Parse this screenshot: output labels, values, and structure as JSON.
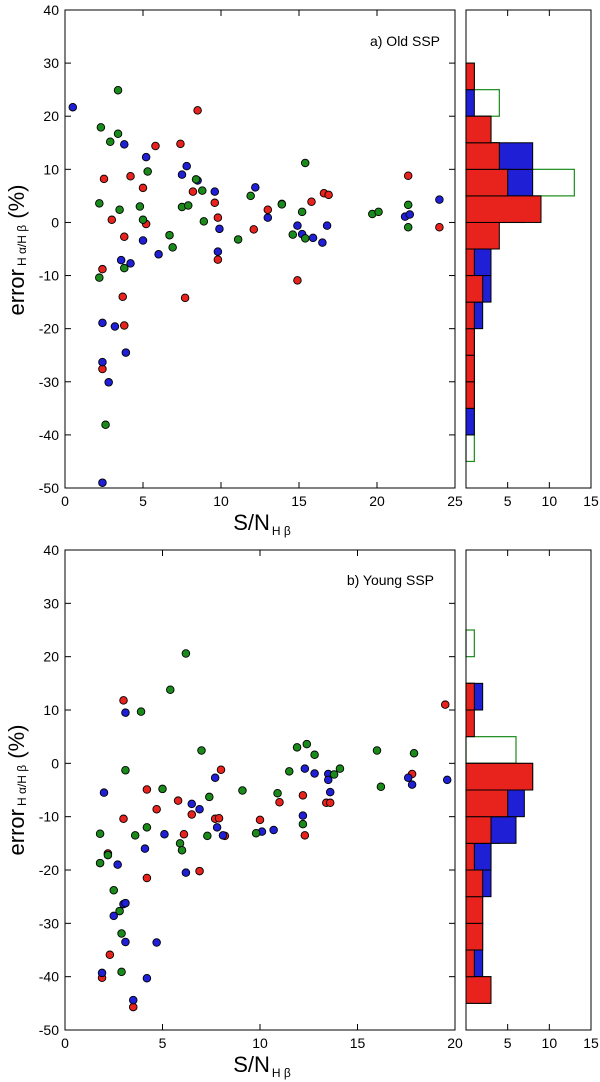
{
  "colors": {
    "red": "#e8221c",
    "blue": "#1f1fd6",
    "green": "#1a8a1a",
    "edge": "#000000"
  },
  "chart_data": [
    {
      "type": "scatter",
      "annotation": "a) Old SSP",
      "xlabel_main": "S/N",
      "xlabel_sub": "H β",
      "ylabel_main": "error",
      "ylabel_sub": "H α/H β",
      "ylabel_tail": " (%)",
      "xlim": [
        0,
        25
      ],
      "ylim": [
        -50,
        40
      ],
      "xticks": [
        "0",
        "5",
        "10",
        "15",
        "20",
        "25"
      ],
      "yticks": [
        "-50",
        "-40",
        "-30",
        "-20",
        "-10",
        "0",
        "10",
        "20",
        "30",
        "40"
      ],
      "series": [
        {
          "name": "red",
          "points": [
            [
              2.5,
              8.2
            ],
            [
              3,
              0.5
            ],
            [
              2.4,
              -8.8
            ],
            [
              2.4,
              -27.6
            ],
            [
              3.7,
              -14
            ],
            [
              3.8,
              -19.4
            ],
            [
              3.8,
              -2.7
            ],
            [
              4.2,
              8.7
            ],
            [
              5,
              6.5
            ],
            [
              5.2,
              -0.3
            ],
            [
              5.8,
              14.4
            ],
            [
              7.4,
              14.8
            ],
            [
              7.7,
              -14.2
            ],
            [
              8.2,
              5.8
            ],
            [
              8.5,
              21.1
            ],
            [
              9.6,
              3.7
            ],
            [
              9.8,
              0.9
            ],
            [
              9.8,
              -7
            ],
            [
              12.1,
              -1.3
            ],
            [
              13,
              2.4
            ],
            [
              14.9,
              -10.9
            ],
            [
              15.8,
              3.9
            ],
            [
              16.6,
              5.5
            ],
            [
              16.9,
              5.2
            ],
            [
              22,
              8.8
            ],
            [
              24,
              -0.9
            ]
          ]
        },
        {
          "name": "blue",
          "points": [
            [
              0.5,
              21.7
            ],
            [
              3.8,
              14.7
            ],
            [
              5.2,
              12.3
            ],
            [
              7.5,
              9
            ],
            [
              7.8,
              10.6
            ],
            [
              8.5,
              7.9
            ],
            [
              9.6,
              5.8
            ],
            [
              9.9,
              -1.2
            ],
            [
              9.8,
              -5.5
            ],
            [
              12.2,
              6.6
            ],
            [
              13,
              0.9
            ],
            [
              13.9,
              3.5
            ],
            [
              14.9,
              -0.6
            ],
            [
              15.2,
              -2.2
            ],
            [
              15.9,
              -2.9
            ],
            [
              16.5,
              -3.8
            ],
            [
              16.8,
              -0.6
            ],
            [
              21.8,
              1.1
            ],
            [
              22.1,
              1.5
            ],
            [
              24,
              4.3
            ],
            [
              2.4,
              -18.9
            ],
            [
              3.2,
              -19.6
            ],
            [
              2.4,
              -26.3
            ],
            [
              2.8,
              -30.1
            ],
            [
              3.9,
              -24.5
            ],
            [
              3.6,
              -7.1
            ],
            [
              4.2,
              -7.7
            ],
            [
              5,
              -3.4
            ],
            [
              6,
              -6
            ],
            [
              2.4,
              -49
            ]
          ]
        },
        {
          "name": "green",
          "points": [
            [
              2.3,
              17.9
            ],
            [
              2.9,
              15.2
            ],
            [
              3.4,
              16.7
            ],
            [
              3.4,
              24.9
            ],
            [
              5.3,
              9.6
            ],
            [
              4.8,
              3
            ],
            [
              5,
              0.5
            ],
            [
              2.2,
              3.6
            ],
            [
              2.2,
              -10.4
            ],
            [
              3.5,
              2.4
            ],
            [
              3.8,
              -8.6
            ],
            [
              6.7,
              -2.4
            ],
            [
              6.9,
              -4.7
            ],
            [
              7.5,
              2.9
            ],
            [
              7.9,
              3.2
            ],
            [
              8.4,
              8.1
            ],
            [
              8.8,
              6
            ],
            [
              8.9,
              0.2
            ],
            [
              11.1,
              -3.2
            ],
            [
              11.9,
              5
            ],
            [
              13.9,
              3.4
            ],
            [
              14.6,
              -2.3
            ],
            [
              15.2,
              2
            ],
            [
              15.4,
              11.2
            ],
            [
              15.4,
              -3
            ],
            [
              19.7,
              1.6
            ],
            [
              20.1,
              2
            ],
            [
              22,
              3.3
            ],
            [
              22,
              -0.9
            ],
            [
              2.6,
              -38.1
            ]
          ]
        }
      ]
    },
    {
      "type": "bar",
      "orientation": "horizontal",
      "xlim": [
        0,
        15
      ],
      "ylim": [
        -50,
        40
      ],
      "xticks": [
        "5",
        "10",
        "15"
      ],
      "bin_edges": [
        -50,
        -45,
        -40,
        -35,
        -30,
        -25,
        -20,
        -15,
        -10,
        -5,
        0,
        5,
        10,
        15,
        20,
        25,
        30,
        35,
        40
      ],
      "series": [
        {
          "name": "green",
          "style": "outline",
          "counts": [
            0,
            1,
            1,
            1,
            1,
            1,
            1,
            1,
            1,
            3,
            7,
            13,
            4,
            3,
            4,
            1,
            0,
            0
          ]
        },
        {
          "name": "blue",
          "style": "filled",
          "counts": [
            0,
            0,
            1,
            1,
            1,
            1,
            2,
            3,
            3,
            2,
            5,
            8,
            8,
            3,
            1,
            0,
            0,
            0
          ]
        },
        {
          "name": "red",
          "style": "filled",
          "counts": [
            0,
            0,
            0,
            1,
            1,
            1,
            1,
            2,
            1,
            4,
            9,
            5,
            4,
            3,
            0,
            1,
            0,
            0
          ]
        }
      ]
    },
    {
      "type": "scatter",
      "annotation": "b) Young SSP",
      "xlabel_main": "S/N",
      "xlabel_sub": "H β",
      "ylabel_main": "error",
      "ylabel_sub": "H α/H β",
      "ylabel_tail": " (%)",
      "xlim": [
        0,
        20
      ],
      "ylim": [
        -50,
        40
      ],
      "xticks": [
        "0",
        "5",
        "10",
        "15",
        "20"
      ],
      "yticks": [
        "-50",
        "-40",
        "-30",
        "-20",
        "-10",
        "0",
        "10",
        "20",
        "30",
        "40"
      ],
      "series": [
        {
          "name": "red",
          "points": [
            [
              3,
              11.8
            ],
            [
              3,
              -10.4
            ],
            [
              2.2,
              -16.9
            ],
            [
              2.3,
              -35.9
            ],
            [
              1.9,
              -40.2
            ],
            [
              3.5,
              -45.7
            ],
            [
              4.2,
              -4.9
            ],
            [
              4.2,
              -21.5
            ],
            [
              4.7,
              -8.6
            ],
            [
              5.8,
              -7
            ],
            [
              6.1,
              -13.3
            ],
            [
              6.5,
              -9.6
            ],
            [
              6.9,
              -20.2
            ],
            [
              7.7,
              -10.4
            ],
            [
              7.9,
              -10.3
            ],
            [
              8.2,
              -13.6
            ],
            [
              8,
              -1.2
            ],
            [
              10,
              -10.6
            ],
            [
              11,
              -7.3
            ],
            [
              12.3,
              -13.5
            ],
            [
              12.2,
              -6
            ],
            [
              13.4,
              -7.4
            ],
            [
              13.6,
              -7.4
            ],
            [
              17.8,
              -2
            ],
            [
              19.5,
              11
            ]
          ]
        },
        {
          "name": "blue",
          "points": [
            [
              3.1,
              9.5
            ],
            [
              2,
              -5.5
            ],
            [
              2.5,
              -28.6
            ],
            [
              2.7,
              -19
            ],
            [
              3,
              -26.4
            ],
            [
              3.1,
              -33.5
            ],
            [
              1.9,
              -39.3
            ],
            [
              3.5,
              -44.4
            ],
            [
              4.1,
              -16
            ],
            [
              4.2,
              -40.3
            ],
            [
              4.7,
              -33.6
            ],
            [
              5.1,
              -13.3
            ],
            [
              6.2,
              -20.5
            ],
            [
              6.5,
              -7.6
            ],
            [
              6.9,
              -8.6
            ],
            [
              7.8,
              -12
            ],
            [
              7.7,
              -2.7
            ],
            [
              8.1,
              -13.5
            ],
            [
              10.1,
              -12.8
            ],
            [
              10.7,
              -12.5
            ],
            [
              12.2,
              -9.8
            ],
            [
              12.3,
              -1
            ],
            [
              12.8,
              -1.9
            ],
            [
              13.5,
              -2
            ],
            [
              13.5,
              -3.1
            ],
            [
              13.6,
              -5.4
            ],
            [
              17.6,
              -2.7
            ],
            [
              17.8,
              -4
            ],
            [
              19.6,
              -3.1
            ],
            [
              3.1,
              -26.2
            ]
          ]
        },
        {
          "name": "green",
          "points": [
            [
              6.2,
              20.6
            ],
            [
              5.4,
              13.8
            ],
            [
              3.1,
              -1.3
            ],
            [
              3.9,
              9.7
            ],
            [
              1.8,
              -13.2
            ],
            [
              1.8,
              -18.7
            ],
            [
              2.2,
              -17.2
            ],
            [
              2.5,
              -23.8
            ],
            [
              2.8,
              -27.7
            ],
            [
              2.9,
              -31.9
            ],
            [
              2.9,
              -39.1
            ],
            [
              3.6,
              -13.5
            ],
            [
              4.2,
              -12
            ],
            [
              5,
              -4.8
            ],
            [
              5.9,
              -15
            ],
            [
              6,
              -16.3
            ],
            [
              7,
              2.4
            ],
            [
              7.3,
              -13.6
            ],
            [
              7.4,
              -6.3
            ],
            [
              9.1,
              -5.1
            ],
            [
              9.8,
              -13.1
            ],
            [
              10.9,
              -5.6
            ],
            [
              11.5,
              -1.5
            ],
            [
              11.9,
              3
            ],
            [
              12.4,
              3.6
            ],
            [
              12.8,
              1.6
            ],
            [
              12.2,
              -11.4
            ],
            [
              13.8,
              -2.1
            ],
            [
              14.1,
              -1
            ],
            [
              16,
              2.4
            ],
            [
              16.2,
              -4.4
            ],
            [
              17.9,
              1.9
            ]
          ]
        }
      ]
    },
    {
      "type": "bar",
      "orientation": "horizontal",
      "xlim": [
        0,
        15
      ],
      "ylim": [
        -50,
        40
      ],
      "xticks": [
        "5",
        "10",
        "15"
      ],
      "bin_edges": [
        -50,
        -45,
        -40,
        -35,
        -30,
        -25,
        -20,
        -15,
        -10,
        -5,
        0,
        5,
        10,
        15,
        20,
        25,
        30,
        35,
        40
      ],
      "series": [
        {
          "name": "green",
          "style": "outline",
          "counts": [
            0,
            0,
            1,
            1,
            1,
            2,
            3,
            4,
            6,
            6,
            6,
            0,
            1,
            0,
            1,
            0,
            0,
            0
          ]
        },
        {
          "name": "blue",
          "style": "filled",
          "counts": [
            0,
            3,
            2,
            2,
            2,
            3,
            3,
            6,
            7,
            8,
            0,
            0,
            2,
            0,
            0,
            0,
            0,
            0
          ]
        },
        {
          "name": "red",
          "style": "filled",
          "counts": [
            0,
            3,
            1,
            2,
            2,
            2,
            1,
            3,
            5,
            8,
            0,
            1,
            1,
            0,
            0,
            0,
            0,
            0
          ]
        }
      ]
    }
  ]
}
